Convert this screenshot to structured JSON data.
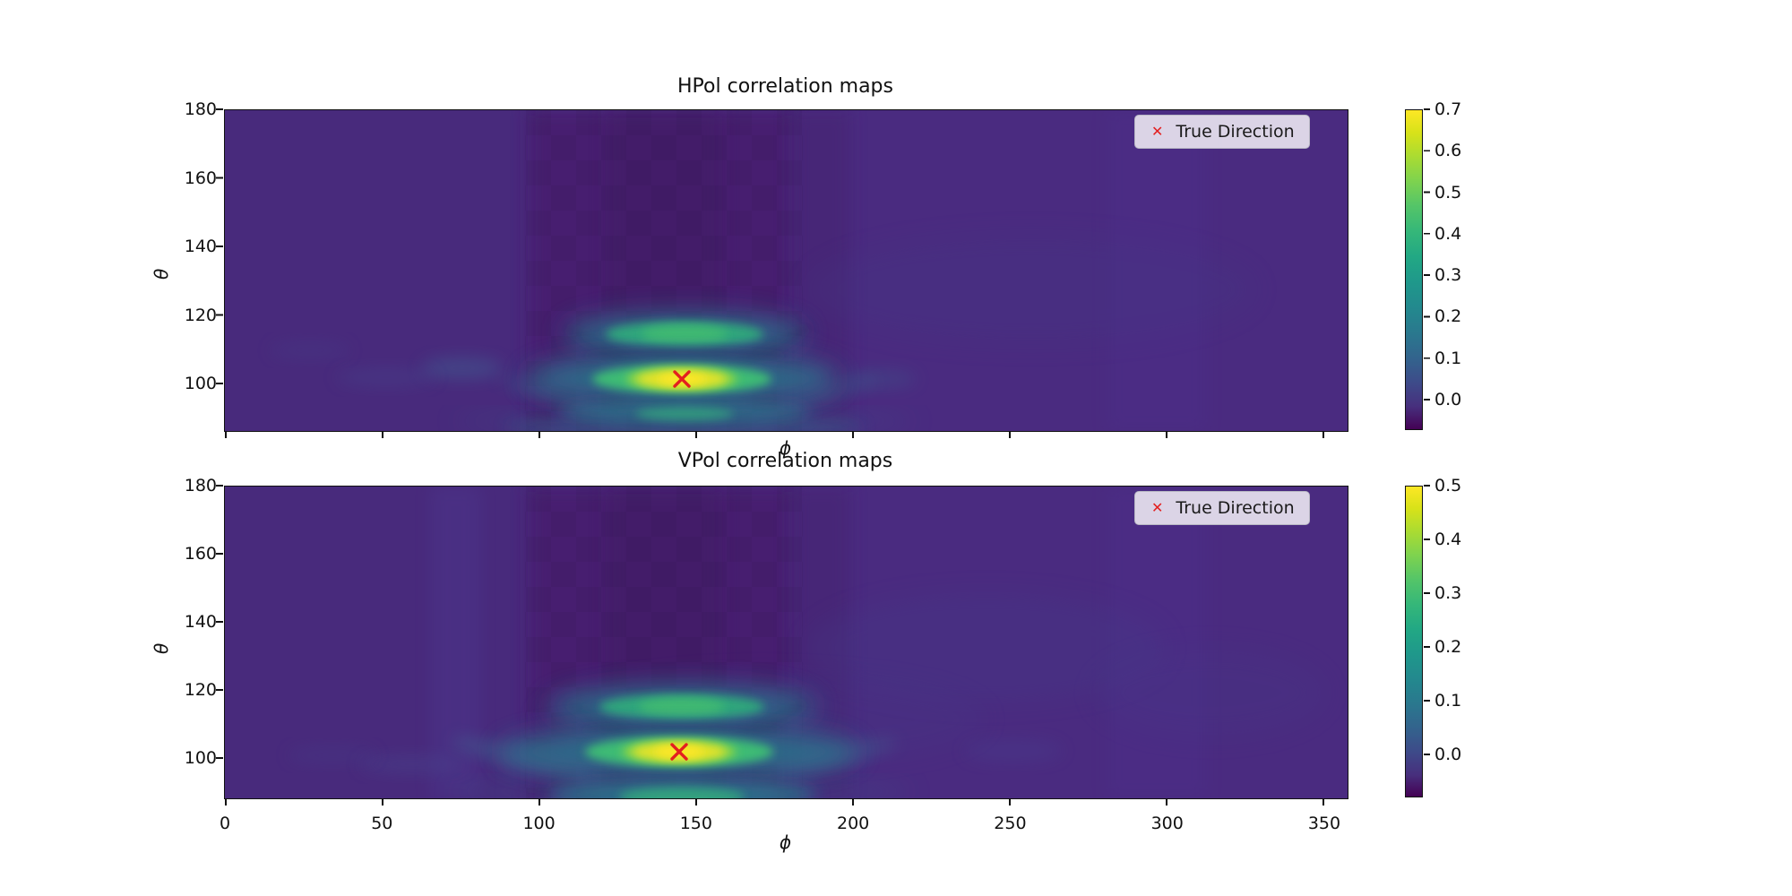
{
  "figure": {
    "legend": {
      "marker_glyph": "✕",
      "label": "True Direction",
      "marker_color": "#e31f1f"
    },
    "colors": {
      "colormap": "viridis",
      "heatmap_base": "#4a2b80",
      "marker": "#e31f1f"
    },
    "subplots": [
      {
        "title": "HPol correlation maps",
        "xlabel": "ϕ",
        "ylabel": "θ",
        "y_tick_labels": [
          "180",
          "160",
          "140",
          "120",
          "100"
        ],
        "x_tick_labels": [],
        "colorbar_tick_labels": [
          "0.7",
          "0.6",
          "0.5",
          "0.4",
          "0.3",
          "0.2",
          "0.1",
          "0.0"
        ]
      },
      {
        "title": "VPol correlation maps",
        "xlabel": "ϕ",
        "ylabel": "θ",
        "y_tick_labels": [
          "180",
          "160",
          "140",
          "120",
          "100"
        ],
        "x_tick_labels": [
          "0",
          "50",
          "100",
          "150",
          "200",
          "250",
          "300",
          "350"
        ],
        "colorbar_tick_labels": [
          "0.5",
          "0.4",
          "0.3",
          "0.2",
          "0.1",
          "0.0"
        ]
      }
    ]
  },
  "chart_data": [
    {
      "type": "heatmap",
      "title": "HPol correlation maps",
      "xlabel": "phi",
      "ylabel": "theta",
      "x_range": [
        0,
        360
      ],
      "y_range": [
        87,
        180
      ],
      "x_ticks": [
        0,
        50,
        100,
        150,
        200,
        250,
        300,
        350
      ],
      "x_tick_labels_visible": false,
      "y_ticks": [
        100,
        120,
        140,
        160,
        180
      ],
      "colormap": "viridis",
      "colorbar_range": [
        -0.07,
        0.7
      ],
      "colorbar_ticks": [
        0.0,
        0.1,
        0.2,
        0.3,
        0.4,
        0.5,
        0.6,
        0.7
      ],
      "background_value": 0.02,
      "dark_band_phi_range": [
        100,
        180
      ],
      "peak": {
        "phi": 146,
        "theta": 103,
        "value": 0.7
      },
      "secondary_lobe": {
        "phi": 146,
        "theta": 115,
        "value": 0.35
      },
      "lower_lobe": {
        "phi": 146,
        "theta": 93,
        "value": 0.25
      },
      "true_direction_marker": {
        "phi": 146,
        "theta": 103
      },
      "legend": [
        "True Direction"
      ],
      "legend_position": "upper right"
    },
    {
      "type": "heatmap",
      "title": "VPol correlation maps",
      "xlabel": "phi",
      "ylabel": "theta",
      "x_range": [
        0,
        360
      ],
      "y_range": [
        88,
        180
      ],
      "x_ticks": [
        0,
        50,
        100,
        150,
        200,
        250,
        300,
        350
      ],
      "x_tick_labels_visible": true,
      "y_ticks": [
        100,
        120,
        140,
        160,
        180
      ],
      "colormap": "viridis",
      "colorbar_range": [
        -0.08,
        0.5
      ],
      "colorbar_ticks": [
        0.0,
        0.1,
        0.2,
        0.3,
        0.4,
        0.5
      ],
      "background_value": 0.02,
      "dark_band_phi_range": [
        100,
        180
      ],
      "peak": {
        "phi": 146,
        "theta": 103,
        "value": 0.5
      },
      "secondary_lobe": {
        "phi": 146,
        "theta": 115,
        "value": 0.28
      },
      "lower_lobe": {
        "phi": 146,
        "theta": 92,
        "value": 0.25
      },
      "true_direction_marker": {
        "phi": 146,
        "theta": 103
      },
      "legend": [
        "True Direction"
      ],
      "legend_position": "upper right"
    }
  ]
}
